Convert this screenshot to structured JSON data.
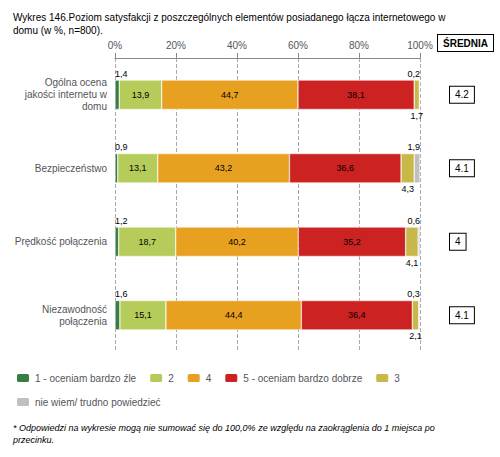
{
  "chart_data": {
    "type": "bar",
    "orientation": "horizontal",
    "stacked": true,
    "title": "Wykres 146.Poziom satysfakcji z poszczególnych elementów posiadanego łącza internetowego w\ndomu (w %, n=800).",
    "footnote": "* Odpowiedzi na wykresie mogą nie sumować się do 100,0% ze względu na zaokrąglenia do 1 miejsca po\nprzecinku.",
    "categories": [
      "Ogólna ocena\njakości internetu w\ndomu",
      "Bezpieczeństwo",
      "Prędkość połączenia",
      "Niezawodność\npołączenia"
    ],
    "series": [
      {
        "name": "1 - oceniam bardzo źle",
        "color": "#3a7d44",
        "values": [
          1.4,
          0.9,
          1.2,
          1.6
        ],
        "value_labels": [
          "1,4",
          "0,9",
          "1,2",
          "1,6"
        ]
      },
      {
        "name": "2",
        "color": "#b5cc5a",
        "values": [
          13.9,
          13.1,
          18.7,
          15.1
        ],
        "value_labels": [
          "13,9",
          "13,1",
          "18,7",
          "15,1"
        ]
      },
      {
        "name": "4",
        "color": "#e8a020",
        "values": [
          44.7,
          43.2,
          40.2,
          44.4
        ],
        "value_labels": [
          "44,7",
          "43,2",
          "40,2",
          "44,4"
        ]
      },
      {
        "name": "5 - oceniam bardzo dobrze",
        "color": "#cc2222",
        "values": [
          38.1,
          36.6,
          35.2,
          36.4
        ],
        "value_labels": [
          "38,1",
          "36,6",
          "35,2",
          "36,4"
        ]
      },
      {
        "name": "3",
        "color": "#c8b84a",
        "values": [
          1.7,
          4.3,
          4.1,
          2.1
        ],
        "value_labels": [
          "1,7",
          "4,3",
          "4,1",
          "2,1"
        ]
      },
      {
        "name": "nie wiem/ trudno powiedzieć",
        "color": "#c0c0c0",
        "values": [
          0.2,
          1.9,
          0.6,
          0.3
        ],
        "value_labels": [
          "0,2",
          "1,9",
          "0,6",
          "0,3"
        ]
      }
    ],
    "xlim": [
      0,
      100
    ],
    "xticks": [
      {
        "value": 0,
        "label": "0%"
      },
      {
        "value": 20,
        "label": "20%"
      },
      {
        "value": 40,
        "label": "40%"
      },
      {
        "value": 60,
        "label": "60%"
      },
      {
        "value": 80,
        "label": "80%"
      },
      {
        "value": 100,
        "label": "100%"
      }
    ],
    "grid": true,
    "legend": "bottom",
    "data_labels": true,
    "annotations": {
      "header": "ŚREDNIA",
      "values": [
        4.2,
        4.1,
        4,
        4.1
      ]
    }
  }
}
